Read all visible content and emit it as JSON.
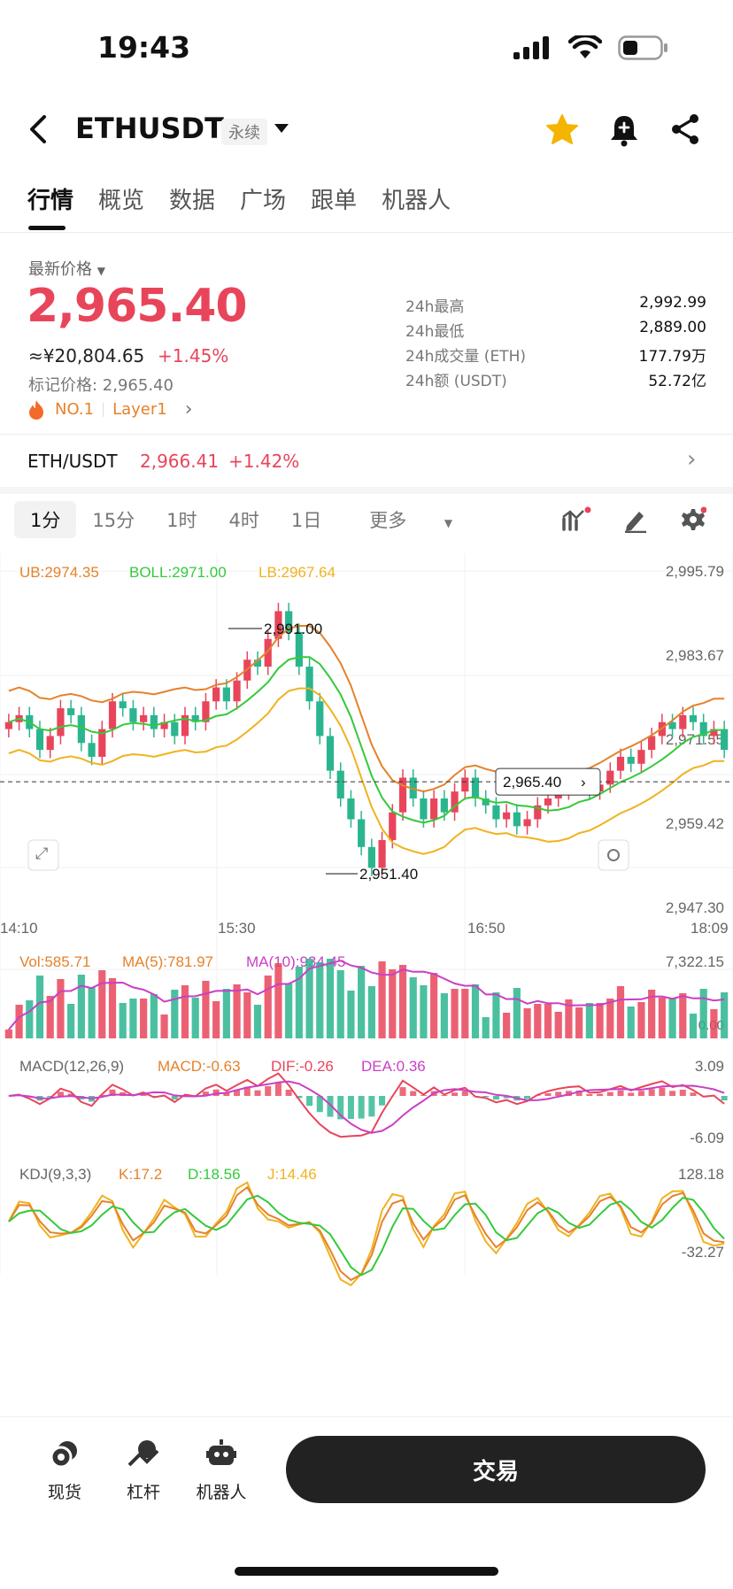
{
  "status": {
    "time": "19:43"
  },
  "header": {
    "title": "ETHUSDT",
    "contract_type": "永续"
  },
  "tabs": [
    {
      "label": "行情",
      "active": true
    },
    {
      "label": "概览"
    },
    {
      "label": "数据"
    },
    {
      "label": "广场"
    },
    {
      "label": "跟单"
    },
    {
      "label": "机器人"
    }
  ],
  "price_block": {
    "label": "最新价格",
    "last_price": "2,965.40",
    "cny": "≈¥20,804.65",
    "change": "+1.45%",
    "mark_price": "标记价格: 2,965.40",
    "rank_tag": "NO.1",
    "category_tag": "Layer1"
  },
  "stats": [
    {
      "label": "24h最高",
      "value": "2,992.99"
    },
    {
      "label": "24h最低",
      "value": "2,889.00"
    },
    {
      "label": "24h成交量 (ETH)",
      "value": "177.79万"
    },
    {
      "label": "24h额 (USDT)",
      "value": "52.72亿"
    }
  ],
  "spot_pair": {
    "name": "ETH/USDT",
    "price": "2,966.41",
    "change": "+1.42%"
  },
  "intervals": [
    {
      "label": "1分",
      "active": true
    },
    {
      "label": "15分"
    },
    {
      "label": "1时"
    },
    {
      "label": "4时"
    },
    {
      "label": "1日"
    },
    {
      "label": "更多"
    }
  ],
  "colors": {
    "up": "#e8455b",
    "down": "#2bb58f",
    "ub": "#e5822b",
    "boll": "#35c93b",
    "lb": "#f0b21f",
    "dea": "#c93fc6"
  },
  "chart_data": {
    "type": "candlestick",
    "main": {
      "legend": {
        "ub": "UB:2974.35",
        "boll": "BOLL:2971.00",
        "lb": "LB:2967.64"
      },
      "y_ticks": [
        "2,995.79",
        "2,983.67",
        "2,971.55",
        "2,959.42",
        "2,947.30"
      ],
      "ylim": [
        2947.3,
        2995.79
      ],
      "x_ticks": [
        "14:10",
        "15:30",
        "16:50",
        "18:09"
      ],
      "high_label": "2,991.00",
      "low_label": "2,951.40",
      "current_price_label": "2,965.40",
      "closes": [
        2974,
        2975,
        2973,
        2970,
        2972,
        2976,
        2975,
        2971,
        2969,
        2973,
        2977,
        2976,
        2974,
        2975,
        2973,
        2974,
        2972,
        2975,
        2974,
        2977,
        2979,
        2977,
        2980,
        2983,
        2982,
        2986,
        2990,
        2987,
        2982,
        2977,
        2972,
        2967,
        2963,
        2960,
        2956,
        2953,
        2957,
        2961,
        2966,
        2963,
        2960,
        2963,
        2961,
        2964,
        2966,
        2963,
        2962,
        2960,
        2961,
        2959,
        2960,
        2962,
        2963,
        2964,
        2965,
        2966,
        2964,
        2965,
        2967,
        2969,
        2968,
        2970,
        2972,
        2974,
        2973,
        2975,
        2974,
        2972,
        2973,
        2970
      ]
    },
    "volume": {
      "legend": {
        "vol": "Vol:585.71",
        "ma5": "MA(5):781.97",
        "ma10": "MA(10):934.45"
      },
      "y_ticks": [
        "7,322.15",
        "0.00"
      ]
    },
    "macd": {
      "legend": {
        "name": "MACD(12,26,9)",
        "macd": "MACD:-0.63",
        "dif": "DIF:-0.26",
        "dea": "DEA:0.36"
      },
      "y_ticks": [
        "3.09",
        "-6.09"
      ]
    },
    "kdj": {
      "legend": {
        "name": "KDJ(9,3,3)",
        "k": "K:17.2",
        "d": "D:18.56",
        "j": "J:14.46"
      },
      "y_ticks": [
        "128.18",
        "-32.27"
      ]
    }
  },
  "bottom_bar": {
    "spot": "现货",
    "margin": "杠杆",
    "bot": "机器人",
    "trade": "交易"
  }
}
